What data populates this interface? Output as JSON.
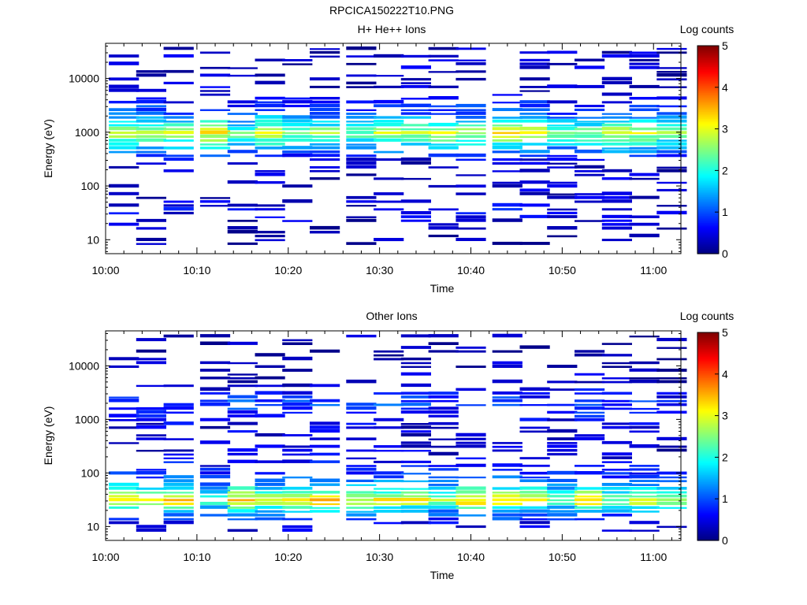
{
  "page_title": "RPCICA150222T10.PNG",
  "chart_data": [
    {
      "type": "heatmap",
      "title": "H+ He++ Ions",
      "xlabel": "Time",
      "ylabel": "Energy (eV)",
      "colorbar_label": "Log counts",
      "colorbar_ticks": [
        "0",
        "1",
        "2",
        "3",
        "4",
        "5"
      ],
      "colorbar_range": [
        0,
        5
      ],
      "colormap": "jet",
      "x_range": [
        "10:00",
        "11:03"
      ],
      "x_ticks": [
        "10:00",
        "10:10",
        "10:20",
        "10:30",
        "10:40",
        "10:50",
        "11:00"
      ],
      "y_scale": "log",
      "y_range": [
        5.5,
        45000
      ],
      "y_ticks": [
        "10",
        "100",
        "1000",
        "10000"
      ],
      "grid": false,
      "time_bins": [
        "10:02",
        "10:05",
        "10:08",
        "10:12",
        "10:15",
        "10:18",
        "10:21",
        "10:24",
        "10:28",
        "10:31",
        "10:34",
        "10:37",
        "10:40",
        "10:44",
        "10:47",
        "10:50",
        "10:53",
        "10:56",
        "10:59",
        "11:02"
      ],
      "energy_profile": [
        {
          "energy": 10,
          "log_counts": 0.15
        },
        {
          "energy": 25,
          "log_counts": 0.35
        },
        {
          "energy": 35,
          "log_counts": 0.6
        },
        {
          "energy": 45,
          "log_counts": 0.4
        },
        {
          "energy": 100,
          "log_counts": 0.3
        },
        {
          "energy": 300,
          "log_counts": 0.4
        },
        {
          "energy": 700,
          "log_counts": 2.0
        },
        {
          "energy": 1000,
          "log_counts": 2.8
        },
        {
          "energy": 1500,
          "log_counts": 1.8
        },
        {
          "energy": 2200,
          "log_counts": 1.1
        },
        {
          "energy": 5000,
          "log_counts": 0.4
        },
        {
          "energy": 10000,
          "log_counts": 0.35
        },
        {
          "energy": 30000,
          "log_counts": 0.3
        }
      ]
    },
    {
      "type": "heatmap",
      "title": "Other Ions",
      "xlabel": "Time",
      "ylabel": "Energy (eV)",
      "colorbar_label": "Log counts",
      "colorbar_ticks": [
        "0",
        "1",
        "2",
        "3",
        "4",
        "5"
      ],
      "colorbar_range": [
        0,
        5
      ],
      "colormap": "jet",
      "x_range": [
        "10:00",
        "11:03"
      ],
      "x_ticks": [
        "10:00",
        "10:10",
        "10:20",
        "10:30",
        "10:40",
        "10:50",
        "11:00"
      ],
      "y_scale": "log",
      "y_range": [
        5.5,
        45000
      ],
      "y_ticks": [
        "10",
        "100",
        "1000",
        "10000"
      ],
      "grid": false,
      "time_bins": [
        "10:02",
        "10:05",
        "10:08",
        "10:12",
        "10:15",
        "10:18",
        "10:21",
        "10:24",
        "10:28",
        "10:31",
        "10:34",
        "10:37",
        "10:40",
        "10:44",
        "10:47",
        "10:50",
        "10:53",
        "10:56",
        "10:59",
        "11:02"
      ],
      "energy_profile": [
        {
          "energy": 8,
          "log_counts": 0.3
        },
        {
          "energy": 12,
          "log_counts": 0.5
        },
        {
          "energy": 18,
          "log_counts": 1.2
        },
        {
          "energy": 22,
          "log_counts": 1.6
        },
        {
          "energy": 30,
          "log_counts": 3.0
        },
        {
          "energy": 40,
          "log_counts": 2.3
        },
        {
          "energy": 60,
          "log_counts": 1.4
        },
        {
          "energy": 100,
          "log_counts": 0.8
        },
        {
          "energy": 200,
          "log_counts": 0.4
        },
        {
          "energy": 500,
          "log_counts": 0.35
        },
        {
          "energy": 1000,
          "log_counts": 0.45
        },
        {
          "energy": 2000,
          "log_counts": 0.9
        },
        {
          "energy": 5000,
          "log_counts": 0.3
        },
        {
          "energy": 20000,
          "log_counts": 0.2
        }
      ]
    }
  ]
}
